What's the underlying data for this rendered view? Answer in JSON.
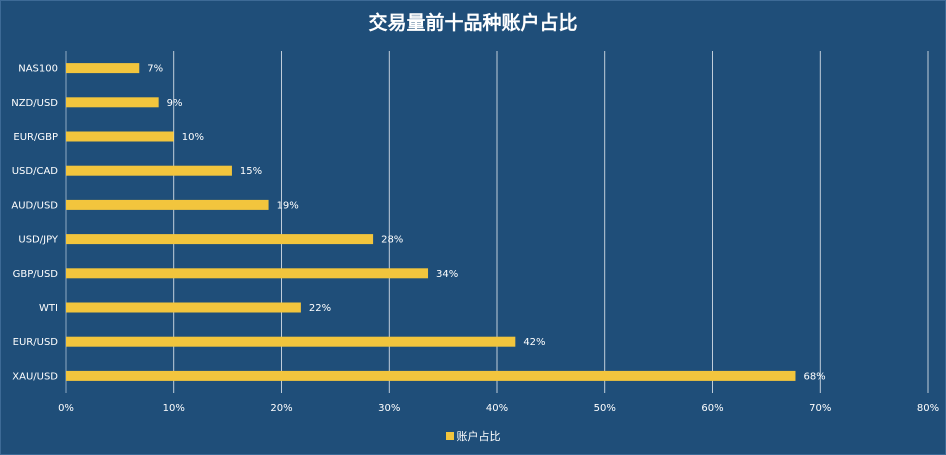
{
  "chart_data": {
    "type": "bar",
    "orientation": "horizontal",
    "title": "交易量前十品种账户占比",
    "categories": [
      "NAS100",
      "NZD/USD",
      "EUR/GBP",
      "USD/CAD",
      "AUD/USD",
      "USD/JPY",
      "GBP/USD",
      "WTI",
      "EUR/USD",
      "XAU/USD"
    ],
    "series": [
      {
        "name": "账户占比",
        "values": [
          0.07,
          0.09,
          0.1,
          0.15,
          0.19,
          0.28,
          0.34,
          0.22,
          0.42,
          0.68
        ],
        "value_labels": [
          "7%",
          "9%",
          "10%",
          "15%",
          "19%",
          "28%",
          "34%",
          "22%",
          "42%",
          "68%"
        ],
        "true_values": [
          0.068,
          0.086,
          0.1,
          0.154,
          0.188,
          0.285,
          0.336,
          0.218,
          0.417,
          0.677
        ]
      }
    ],
    "xlim": [
      0,
      0.8
    ],
    "x_ticks": [
      "0%",
      "10%",
      "20%",
      "30%",
      "40%",
      "50%",
      "60%",
      "70%",
      "80%"
    ],
    "grid": true,
    "legend_position": "bottom",
    "colors": {
      "bar": "#f2c53d",
      "background": "#1f4e79",
      "grid": "#ffffff",
      "text": "#ffffff"
    }
  }
}
